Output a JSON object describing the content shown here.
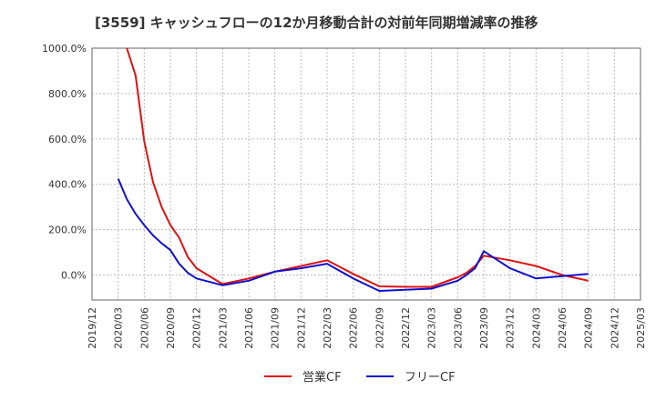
{
  "chart_data": {
    "type": "line",
    "title": "[3559]  キャッシュフローの12か月移動合計の対前年同期増減率の推移",
    "xlabel": "",
    "ylabel": "",
    "ylim": [
      -110,
      1000
    ],
    "y_ticks": [
      "1000.0%",
      "800.0%",
      "600.0%",
      "400.0%",
      "200.0%",
      "0.0%"
    ],
    "y_tick_values": [
      1000,
      800,
      600,
      400,
      200,
      0
    ],
    "x_ticks": [
      "2019/12",
      "2020/03",
      "2020/06",
      "2020/09",
      "2020/12",
      "2021/03",
      "2021/06",
      "2021/09",
      "2021/12",
      "2022/03",
      "2022/06",
      "2022/09",
      "2022/12",
      "2023/03",
      "2023/06",
      "2023/09",
      "2023/12",
      "2024/03",
      "2024/06",
      "2024/09",
      "2024/12",
      "2025/03"
    ],
    "grid": true,
    "legend_position": "bottom",
    "series": [
      {
        "name": "営業CF",
        "color": "#dd1111",
        "x": [
          "2020/04",
          "2020/05",
          "2020/06",
          "2020/07",
          "2020/08",
          "2020/09",
          "2020/10",
          "2020/11",
          "2020/12",
          "2021/03",
          "2021/06",
          "2021/09",
          "2021/12",
          "2022/03",
          "2022/06",
          "2022/09",
          "2022/12",
          "2023/03",
          "2023/06",
          "2023/07",
          "2023/08",
          "2023/09",
          "2023/12",
          "2024/03",
          "2024/06",
          "2024/09"
        ],
        "values": [
          1000,
          880,
          590,
          410,
          300,
          220,
          165,
          80,
          30,
          -40,
          -15,
          15,
          40,
          65,
          5,
          -50,
          -52,
          -52,
          -10,
          10,
          40,
          85,
          65,
          40,
          0,
          -25
        ]
      },
      {
        "name": "フリーCF",
        "color": "#1111cc",
        "x": [
          "2020/03",
          "2020/04",
          "2020/05",
          "2020/06",
          "2020/07",
          "2020/08",
          "2020/09",
          "2020/10",
          "2020/11",
          "2020/12",
          "2021/03",
          "2021/06",
          "2021/09",
          "2021/12",
          "2022/03",
          "2022/06",
          "2022/09",
          "2022/12",
          "2023/03",
          "2023/06",
          "2023/07",
          "2023/08",
          "2023/09",
          "2023/12",
          "2024/03",
          "2024/06",
          "2024/09"
        ],
        "values": [
          425,
          335,
          270,
          220,
          175,
          140,
          110,
          50,
          10,
          -15,
          -45,
          -25,
          15,
          30,
          50,
          -15,
          -70,
          -65,
          -60,
          -25,
          0,
          30,
          105,
          30,
          -15,
          -5,
          5
        ]
      }
    ]
  }
}
